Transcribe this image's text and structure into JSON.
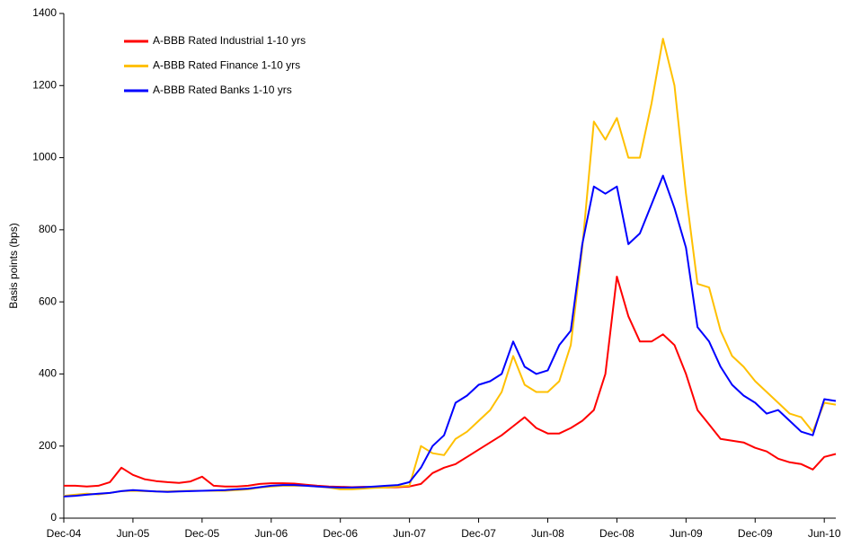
{
  "chart_data": {
    "type": "line",
    "ylabel": "Basis points (bps)",
    "x": [
      "Dec-04",
      "Jan-05",
      "Feb-05",
      "Mar-05",
      "Apr-05",
      "May-05",
      "Jun-05",
      "Jul-05",
      "Aug-05",
      "Sep-05",
      "Oct-05",
      "Nov-05",
      "Dec-05",
      "Jan-06",
      "Feb-06",
      "Mar-06",
      "Apr-06",
      "May-06",
      "Jun-06",
      "Jul-06",
      "Aug-06",
      "Sep-06",
      "Oct-06",
      "Nov-06",
      "Dec-06",
      "Jan-07",
      "Feb-07",
      "Mar-07",
      "Apr-07",
      "May-07",
      "Jun-07",
      "Jul-07",
      "Aug-07",
      "Sep-07",
      "Oct-07",
      "Nov-07",
      "Dec-07",
      "Jan-08",
      "Feb-08",
      "Mar-08",
      "Apr-08",
      "May-08",
      "Jun-08",
      "Jul-08",
      "Aug-08",
      "Sep-08",
      "Oct-08",
      "Nov-08",
      "Dec-08",
      "Jan-09",
      "Feb-09",
      "Mar-09",
      "Apr-09",
      "May-09",
      "Jun-09",
      "Jul-09",
      "Aug-09",
      "Sep-09",
      "Oct-09",
      "Nov-09",
      "Dec-09",
      "Jan-10",
      "Feb-10",
      "Mar-10",
      "Apr-10",
      "May-10",
      "Jun-10",
      "Jul-10"
    ],
    "xticks": [
      "Dec-04",
      "Jun-05",
      "Dec-05",
      "Jun-06",
      "Dec-06",
      "Jun-07",
      "Dec-07",
      "Jun-08",
      "Dec-08",
      "Jun-09",
      "Dec-09",
      "Jun-10"
    ],
    "ylim": [
      0,
      1400
    ],
    "yticks": [
      0,
      200,
      400,
      600,
      800,
      1000,
      1200,
      1400
    ],
    "grid": false,
    "legend": "upper left",
    "series": [
      {
        "name": "A-BBB Rated Industrial 1-10 yrs",
        "color": "#ff0000",
        "values": [
          90,
          90,
          88,
          90,
          100,
          140,
          120,
          108,
          103,
          100,
          98,
          102,
          115,
          90,
          88,
          88,
          90,
          95,
          97,
          97,
          96,
          93,
          90,
          88,
          87,
          86,
          87,
          86,
          85,
          86,
          88,
          95,
          125,
          140,
          150,
          170,
          190,
          210,
          230,
          255,
          280,
          250,
          235,
          235,
          250,
          270,
          300,
          400,
          670,
          560,
          490,
          490,
          510,
          480,
          400,
          300,
          260,
          220,
          215,
          210,
          195,
          185,
          165,
          155,
          150,
          135,
          170,
          178
        ]
      },
      {
        "name": "A-BBB Rated Finance 1-10 yrs",
        "color": "#ffc000",
        "values": [
          62,
          65,
          68,
          66,
          70,
          75,
          76,
          75,
          74,
          74,
          75,
          76,
          76,
          76,
          76,
          78,
          80,
          85,
          88,
          90,
          90,
          90,
          88,
          85,
          80,
          80,
          82,
          84,
          85,
          88,
          90,
          200,
          180,
          175,
          220,
          240,
          270,
          300,
          350,
          450,
          370,
          350,
          350,
          380,
          480,
          750,
          1100,
          1050,
          1110,
          1000,
          1000,
          1150,
          1330,
          1200,
          900,
          650,
          640,
          520,
          450,
          420,
          380,
          350,
          320,
          290,
          280,
          240,
          320,
          315
        ]
      },
      {
        "name": "A-BBB Rated Banks 1-10 yrs",
        "color": "#0000ff",
        "values": [
          60,
          62,
          65,
          68,
          70,
          75,
          78,
          76,
          74,
          73,
          74,
          75,
          76,
          77,
          78,
          80,
          82,
          86,
          90,
          92,
          92,
          90,
          88,
          86,
          85,
          85,
          86,
          88,
          90,
          92,
          100,
          140,
          200,
          230,
          320,
          340,
          370,
          380,
          400,
          490,
          420,
          400,
          410,
          480,
          520,
          760,
          920,
          900,
          920,
          760,
          790,
          870,
          950,
          860,
          750,
          530,
          490,
          420,
          370,
          340,
          320,
          290,
          300,
          270,
          240,
          230,
          330,
          325
        ]
      }
    ]
  }
}
